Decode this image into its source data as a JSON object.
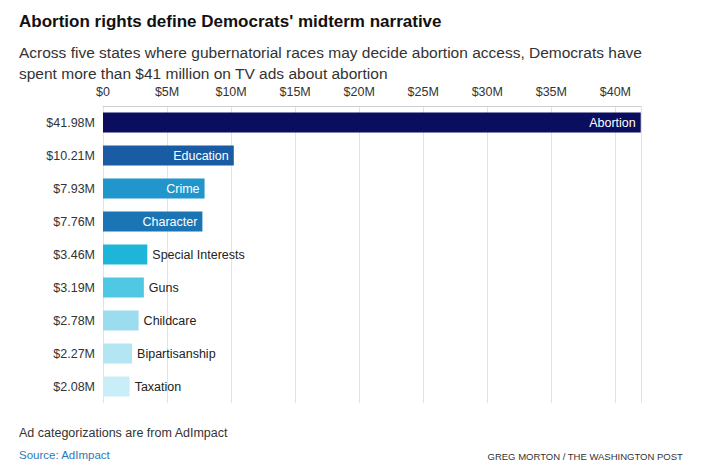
{
  "chart_data": {
    "type": "bar",
    "orientation": "horizontal",
    "title": "Abortion rights define Democrats' midterm narrative",
    "subtitle": "Across five states where gubernatorial races may decide abortion access, Democrats have spent more than $41 million on TV ads about abortion",
    "categories": [
      "Abortion",
      "Education",
      "Crime",
      "Character",
      "Special Interests",
      "Guns",
      "Childcare",
      "Bipartisanship",
      "Taxation"
    ],
    "values": [
      41.98,
      10.21,
      7.93,
      7.76,
      3.46,
      3.19,
      2.78,
      2.27,
      2.08
    ],
    "value_labels": [
      "$41.98M",
      "$10.21M",
      "$7.93M",
      "$7.76M",
      "$3.46M",
      "$3.19M",
      "$2.78M",
      "$2.27M",
      "$2.08M"
    ],
    "colors": [
      "#0b0d5e",
      "#1a5ca3",
      "#2196cc",
      "#1b74b4",
      "#1eb6d8",
      "#4ec8e3",
      "#9cdcef",
      "#b3e5f3",
      "#c9eef8"
    ],
    "data_labels": true,
    "xlim": [
      0,
      42
    ],
    "xticks": [
      {
        "value": 0,
        "label": "$0"
      },
      {
        "value": 5,
        "label": "$5M"
      },
      {
        "value": 10,
        "label": "$10M"
      },
      {
        "value": 15,
        "label": "$15M"
      },
      {
        "value": 20,
        "label": "$20M"
      },
      {
        "value": 25,
        "label": "$25M"
      },
      {
        "value": 30,
        "label": "$30M"
      },
      {
        "value": 35,
        "label": "$35M"
      },
      {
        "value": 40,
        "label": "$40M"
      }
    ],
    "grid": true,
    "note": "Ad categorizations are from AdImpact",
    "source": "Source: AdImpact",
    "credit": "GREG MORTON / THE WASHINGTON POST"
  }
}
